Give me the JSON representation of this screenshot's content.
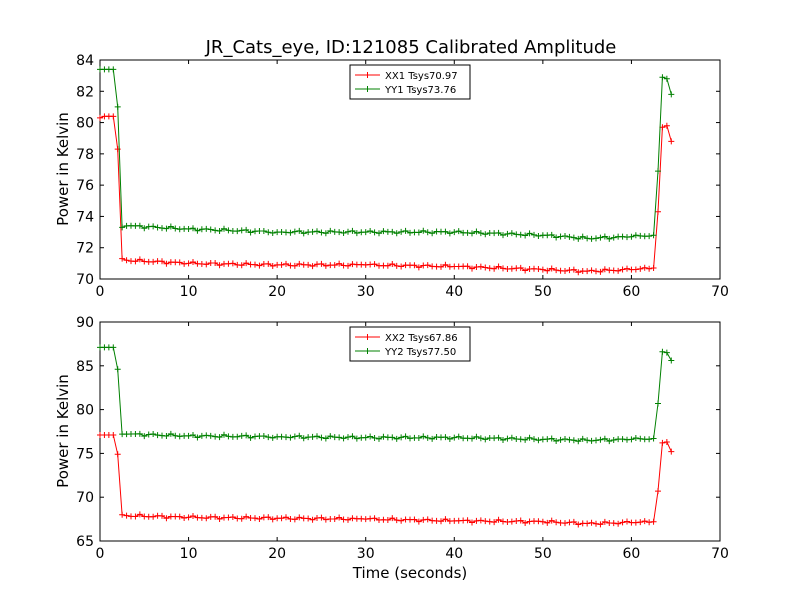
{
  "chart_data": [
    {
      "type": "line",
      "title": "JR_Cats_eye, ID:121085 Calibrated Amplitude",
      "xlabel": "",
      "ylabel": "Power in Kelvin",
      "xlim": [
        0,
        70
      ],
      "ylim": [
        70,
        84
      ],
      "xticks": [
        "0",
        "10",
        "20",
        "30",
        "40",
        "50",
        "60",
        "70"
      ],
      "yticks": [
        "70",
        "72",
        "74",
        "76",
        "78",
        "80",
        "82",
        "84"
      ],
      "grid": false,
      "legend_position": "top-center",
      "x": [
        0,
        0.5,
        1,
        1.5,
        2,
        2.5,
        3,
        10,
        20,
        30,
        40,
        50,
        55,
        60,
        62.5,
        63,
        63.5,
        64,
        64.5
      ],
      "series": [
        {
          "name": "XX1 Tsys70.97",
          "color": "#ff0000",
          "values": [
            80.3,
            80.4,
            80.4,
            80.4,
            78.3,
            71.3,
            71.2,
            71.0,
            70.9,
            70.9,
            70.8,
            70.6,
            70.5,
            70.6,
            70.7,
            74.3,
            79.7,
            79.8,
            78.8
          ]
        },
        {
          "name": "YY1 Tsys73.76",
          "color": "#008000",
          "values": [
            83.4,
            83.4,
            83.4,
            83.4,
            81.0,
            73.3,
            73.4,
            73.2,
            73.0,
            73.0,
            73.0,
            72.8,
            72.6,
            72.7,
            72.8,
            76.9,
            82.9,
            82.8,
            81.8
          ]
        }
      ]
    },
    {
      "type": "line",
      "title": "",
      "xlabel": "Time (seconds)",
      "ylabel": "Power in Kelvin",
      "xlim": [
        0,
        70
      ],
      "ylim": [
        65,
        90
      ],
      "xticks": [
        "0",
        "10",
        "20",
        "30",
        "40",
        "50",
        "60",
        "70"
      ],
      "yticks": [
        "65",
        "70",
        "75",
        "80",
        "85",
        "90"
      ],
      "grid": false,
      "legend_position": "top-center",
      "x": [
        0,
        0.5,
        1,
        1.5,
        2,
        2.5,
        3,
        10,
        20,
        30,
        40,
        50,
        55,
        60,
        62.5,
        63,
        63.5,
        64,
        64.5
      ],
      "series": [
        {
          "name": "XX2 Tsys67.86",
          "color": "#ff0000",
          "values": [
            77.1,
            77.1,
            77.1,
            77.1,
            74.9,
            68.0,
            67.9,
            67.7,
            67.6,
            67.5,
            67.3,
            67.2,
            67.0,
            67.1,
            67.2,
            70.7,
            76.2,
            76.3,
            75.2
          ]
        },
        {
          "name": "YY2 Tsys77.50",
          "color": "#008000",
          "values": [
            87.1,
            87.1,
            87.1,
            87.1,
            84.6,
            77.2,
            77.2,
            77.0,
            76.9,
            76.8,
            76.8,
            76.6,
            76.5,
            76.6,
            76.7,
            80.7,
            86.6,
            86.5,
            85.6
          ]
        }
      ]
    }
  ]
}
